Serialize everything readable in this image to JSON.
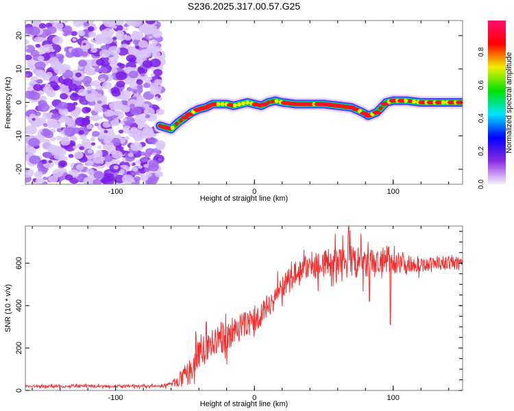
{
  "chart_data": [
    {
      "type": "heatmap",
      "title": "S236.2025.317.00.57.G25",
      "xlabel": "Height of straight line (km)",
      "ylabel": "Frequency (Hz)",
      "xlim": [
        -165,
        150
      ],
      "ylim": [
        -24.5,
        24.5
      ],
      "xticks": [
        -100,
        0,
        100
      ],
      "yticks": [
        -20,
        -10,
        0,
        10,
        20
      ],
      "noise_region_xmax": -67,
      "ridge": {
        "x": [
          -68,
          -60,
          -55,
          -50,
          -45,
          -40,
          -35,
          -30,
          -20,
          -15,
          -10,
          -5,
          0,
          5,
          10,
          15,
          20,
          30,
          40,
          50,
          60,
          70,
          78,
          82,
          88,
          95,
          100,
          110,
          120,
          130,
          150
        ],
        "freq": [
          -7,
          -8,
          -6,
          -4.5,
          -3,
          -2,
          -1.5,
          -0.5,
          -0.5,
          -1,
          -0.5,
          0,
          -0.5,
          -1,
          0,
          0.5,
          0,
          -0.5,
          -0.5,
          -0.5,
          -1,
          -1.5,
          -3,
          -4,
          -3,
          0,
          0.5,
          0.5,
          0,
          0,
          0
        ]
      },
      "colorbar": {
        "label": "Normalized spectral amplitude",
        "range": [
          0,
          0.99
        ],
        "ticks": [
          "0.0",
          "0.2",
          "0.4",
          "0.6",
          "0.8"
        ],
        "colors": [
          "#f4eefc",
          "#8a2be2",
          "#0000ff",
          "#00e5ff",
          "#00e000",
          "#f0f000",
          "#ff0000",
          "#ff1070"
        ]
      }
    },
    {
      "type": "line",
      "xlabel": "Height of straight line (km)",
      "ylabel": "SNR (10 * v/v)",
      "xlim": [
        -165,
        150
      ],
      "ylim": [
        0,
        775
      ],
      "xticks": [
        -100,
        0,
        100
      ],
      "yticks": [
        0,
        200,
        400,
        600
      ],
      "color": "#f03030",
      "trend_x": [
        -165,
        -70,
        -60,
        -50,
        -45,
        -40,
        -30,
        -20,
        -10,
        0,
        10,
        20,
        30,
        40,
        50,
        60,
        70,
        80,
        90,
        100,
        110,
        120,
        130,
        140,
        150
      ],
      "trend_y": [
        20,
        20,
        30,
        60,
        100,
        180,
        220,
        260,
        300,
        330,
        400,
        480,
        560,
        590,
        600,
        600,
        610,
        590,
        600,
        620,
        600,
        590,
        600,
        600,
        600
      ],
      "noise_amplitude": [
        8,
        8,
        15,
        60,
        80,
        90,
        90,
        90,
        80,
        80,
        70,
        70,
        70,
        80,
        90,
        90,
        100,
        90,
        90,
        90,
        50,
        40,
        40,
        40,
        40
      ],
      "spikes": [
        {
          "x": 68,
          "y": 775
        },
        {
          "x": 83,
          "y": 420
        },
        {
          "x": 98,
          "y": 310
        }
      ]
    }
  ]
}
